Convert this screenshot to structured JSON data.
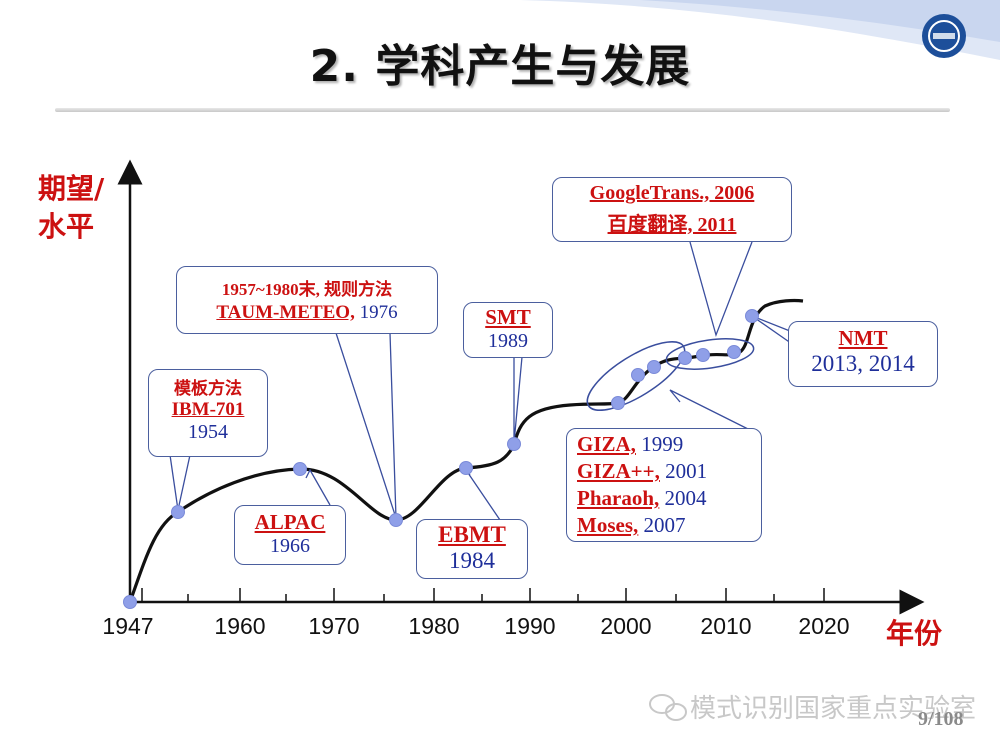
{
  "title": "2. 学科产生与发展",
  "y_axis_label_line1": "期望/",
  "y_axis_label_line2": "水平",
  "x_axis_label": "年份",
  "x_ticks": [
    "1947",
    "1960",
    "1970",
    "1980",
    "1990",
    "2000",
    "2010",
    "2020"
  ],
  "callouts": {
    "template": {
      "line1": "模板方法",
      "line2": "IBM-701",
      "line3": "1954"
    },
    "rules": {
      "line1": "1957~1980末, 规则方法",
      "line2_red": "TAUM-METEO,",
      "line2_blue": " 1976"
    },
    "alpac": {
      "line1": "ALPAC",
      "line2": "1966"
    },
    "ebmt": {
      "line1": "EBMT",
      "line2": "1984"
    },
    "smt": {
      "line1": "SMT",
      "line2": "1989"
    },
    "google": {
      "line1": "GoogleTrans., 2006",
      "line2": "百度翻译, 2011"
    },
    "nmt": {
      "line1": "NMT",
      "line2": "2013, 2014"
    },
    "giza": [
      {
        "name": "GIZA,",
        "year": " 1999"
      },
      {
        "name": "GIZA++,",
        "year": " 2001"
      },
      {
        "name": "Pharaoh,",
        "year": " 2004"
      },
      {
        "name": "Moses,",
        "year": " 2007"
      }
    ]
  },
  "watermark": "模式识别国家重点实验室",
  "page_number": "9/108",
  "colors": {
    "accent_red": "#cc1111",
    "text_blue": "#1f2f9a",
    "box_border": "#4b5f9e",
    "dot": "#8f9fe8"
  }
}
